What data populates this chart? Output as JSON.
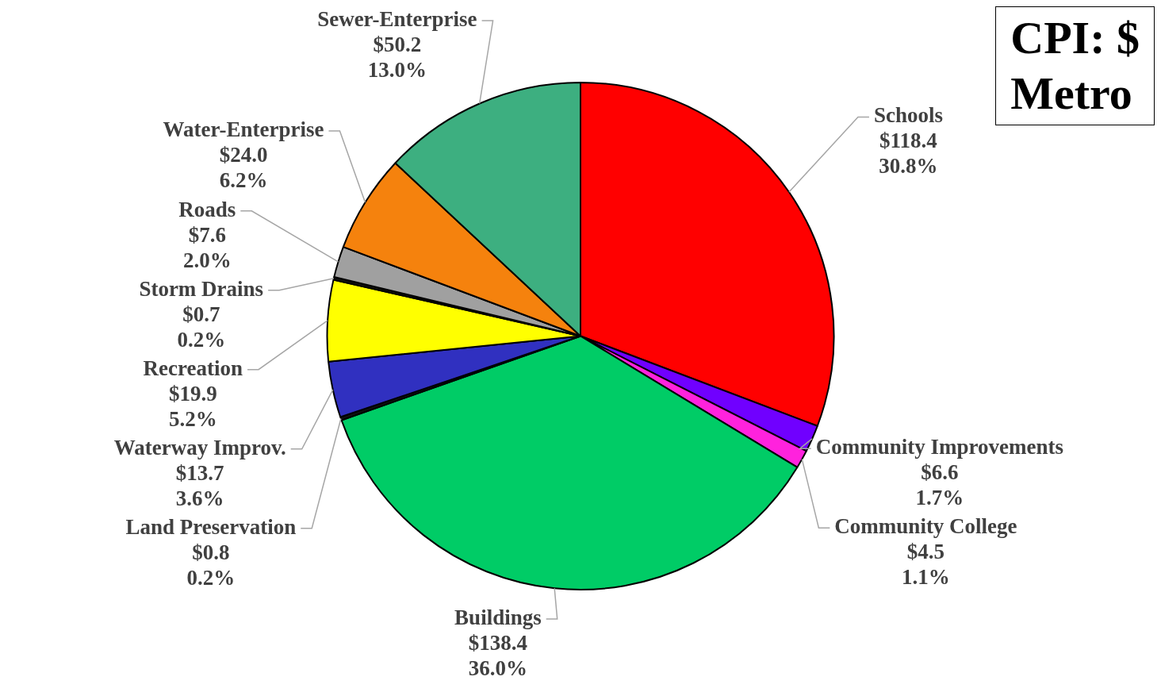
{
  "chart_data": {
    "type": "pie",
    "title": "CPI: $\nMetro",
    "categories": [
      "Schools",
      "Community Improvements",
      "Community College",
      "Buildings",
      "Land Preservation",
      "Waterway Improv.",
      "Recreation",
      "Storm Drains",
      "Roads",
      "Water-Enterprise",
      "Sewer-Enterprise"
    ],
    "values": [
      118.4,
      6.6,
      4.5,
      138.4,
      0.8,
      13.7,
      19.9,
      0.7,
      7.6,
      24.0,
      50.2
    ],
    "value_labels": [
      "$118.4\n30.8%",
      "$6.6\n1.7%",
      "$4.5\n1.1%",
      "$138.4\n36.0%",
      "$0.8\n0.2%",
      "$13.7\n3.6%",
      "$19.9\n5.2%",
      "$0.7\n0.2%",
      "$7.6\n2.0%",
      "$24.0\n6.2%",
      "$50.2\n13.0%"
    ],
    "colors": [
      "#ff0000",
      "#7000ff",
      "#ff22dd",
      "#00cc66",
      "#111111",
      "#3030c0",
      "#ffff00",
      "#111111",
      "#a0a0a0",
      "#f5820d",
      "#3daf80"
    ],
    "legend": false
  }
}
